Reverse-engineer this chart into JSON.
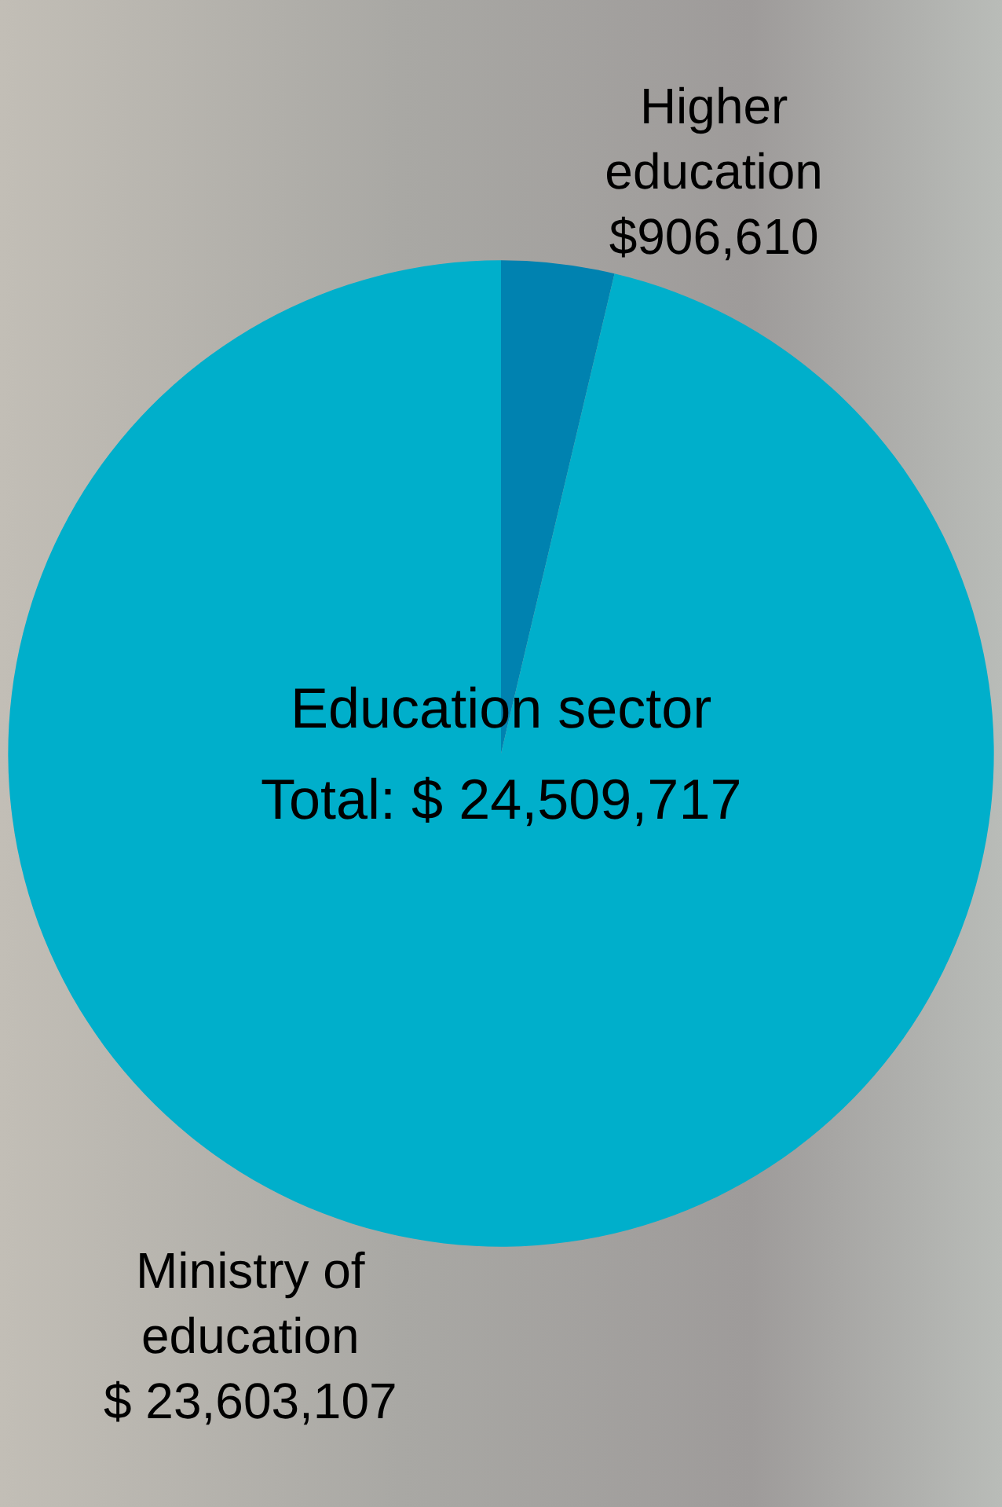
{
  "chart_data": {
    "type": "pie",
    "categories": [
      "Higher education",
      "Ministry of education"
    ],
    "values": [
      906610,
      23603107
    ],
    "colors": [
      "#0082b0",
      "#00afcb"
    ],
    "value_labels": [
      "$906,610",
      "$ 23,603,107"
    ],
    "annotations": [
      "Education sector",
      "Total: $ 24,509,717"
    ],
    "legend": false
  }
}
